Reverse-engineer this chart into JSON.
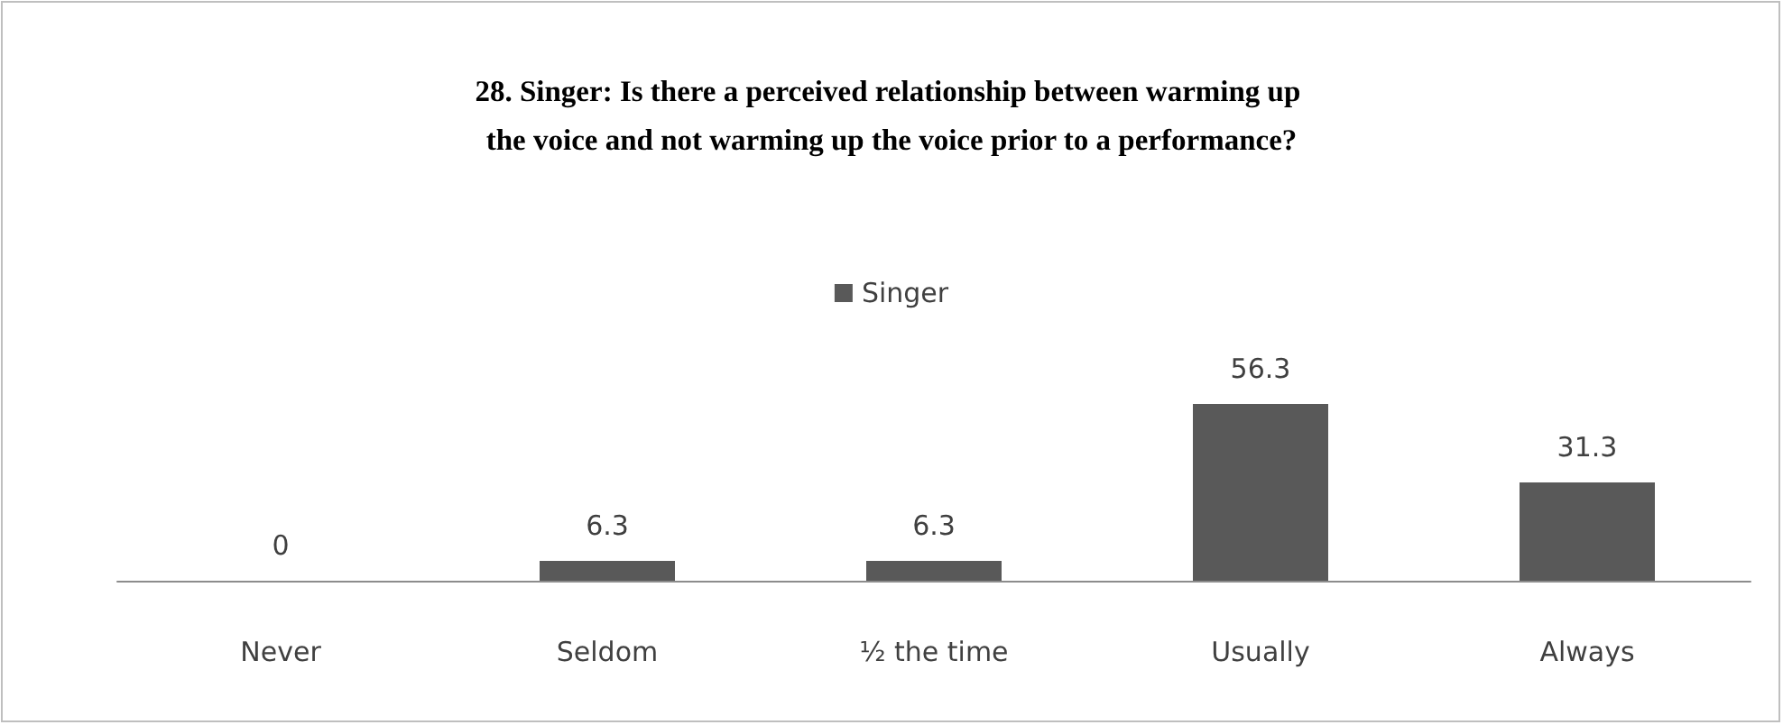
{
  "chart_data": {
    "type": "bar",
    "title": "28. Singer: Is there a perceived relationship between warming up the voice and not warming up the voice prior to a performance?",
    "categories": [
      "Never",
      "Seldom",
      "½ the time",
      "Usually",
      "Always"
    ],
    "series": [
      {
        "name": "Singer",
        "color": "#595959",
        "values": [
          0,
          6.3,
          6.3,
          56.3,
          31.3
        ]
      }
    ],
    "data_labels": true,
    "legend": "top"
  }
}
